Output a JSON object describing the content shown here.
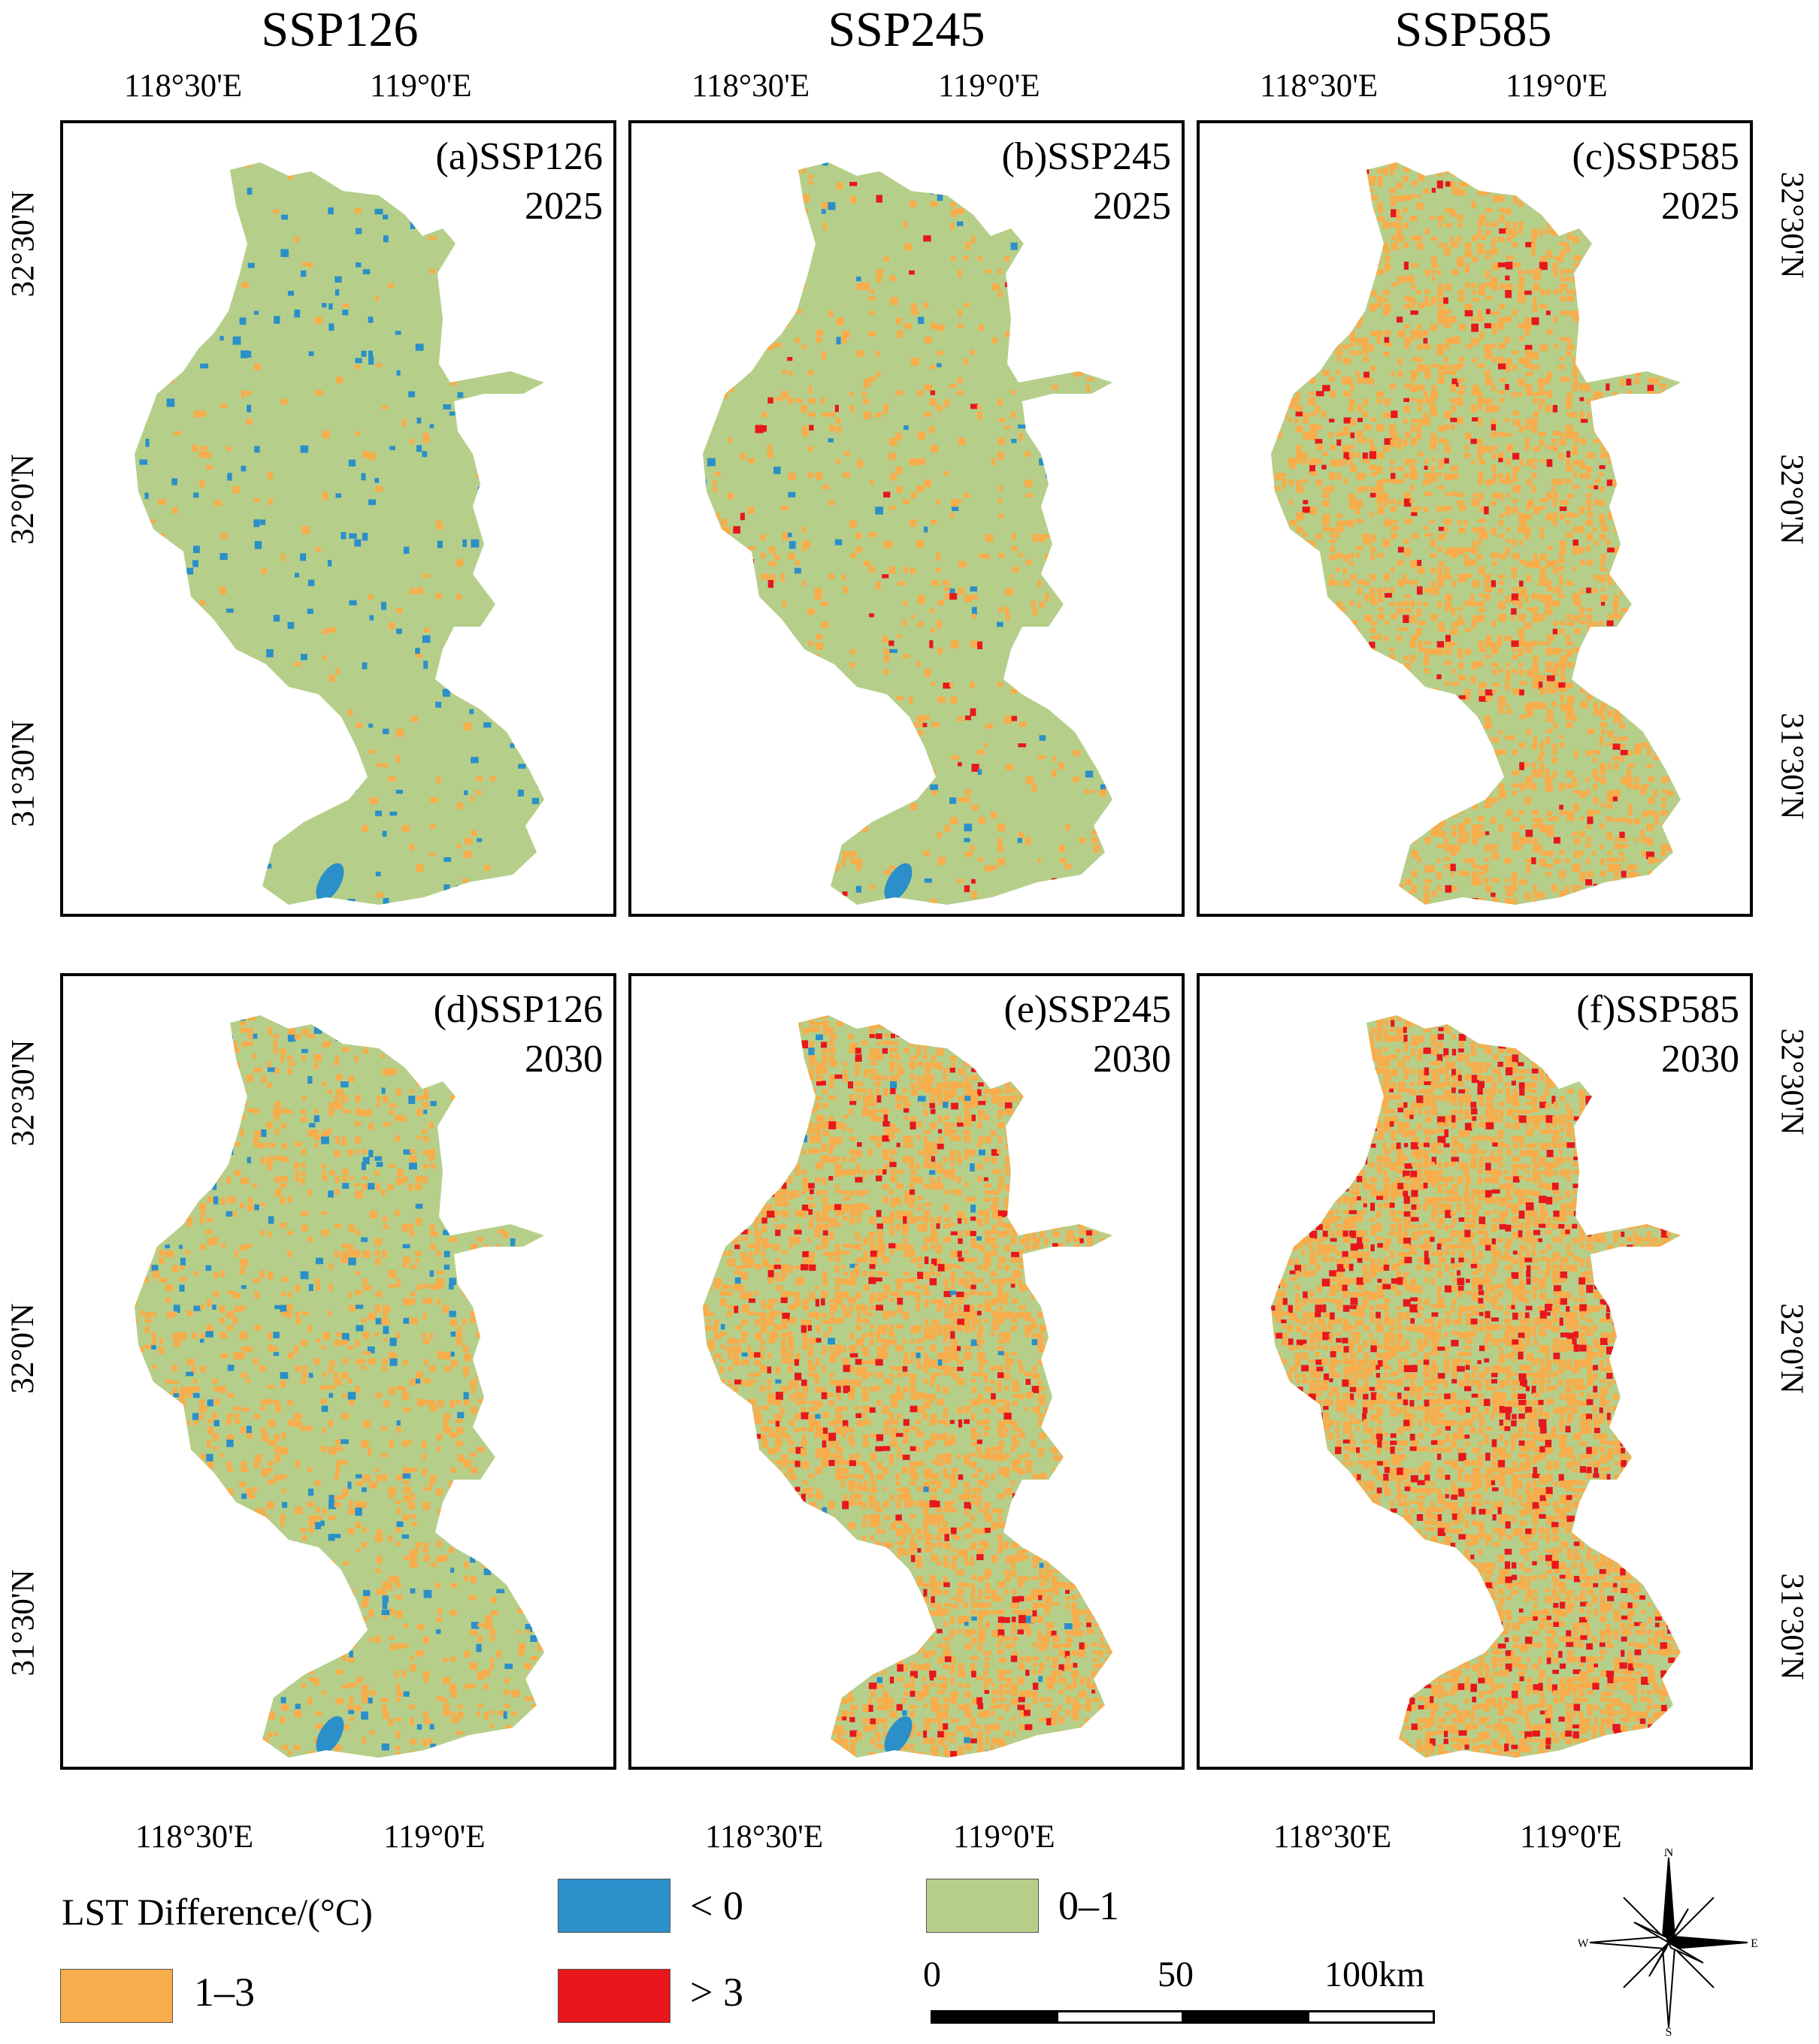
{
  "column_titles": [
    "SSP126",
    "SSP245",
    "SSP585"
  ],
  "lon_ticks": [
    "118°30'E",
    "119°0'E"
  ],
  "lat_ticks": [
    "32°30'N",
    "32°0'N",
    "31°30'N"
  ],
  "panels": [
    {
      "label": "(a)SSP126",
      "year": "2025"
    },
    {
      "label": "(b)SSP245",
      "year": "2025"
    },
    {
      "label": "(c)SSP585",
      "year": "2025"
    },
    {
      "label": "(d)SSP126",
      "year": "2030"
    },
    {
      "label": "(e)SSP245",
      "year": "2030"
    },
    {
      "label": "(f)SSP585",
      "year": "2030"
    }
  ],
  "legend": {
    "title": "LST Difference/(°C)",
    "classes": [
      {
        "label": "< 0",
        "color": "#2b8fc9"
      },
      {
        "label": "0–1",
        "color": "#b5cf8a"
      },
      {
        "label": "1–3",
        "color": "#f7ad4c"
      },
      {
        "label": "> 3",
        "color": "#e8171b"
      }
    ]
  },
  "scale_bar": {
    "labels": [
      "0",
      "50",
      "100km"
    ]
  },
  "compass": {
    "N": "N",
    "S": "S",
    "E": "E",
    "W": "W"
  }
}
